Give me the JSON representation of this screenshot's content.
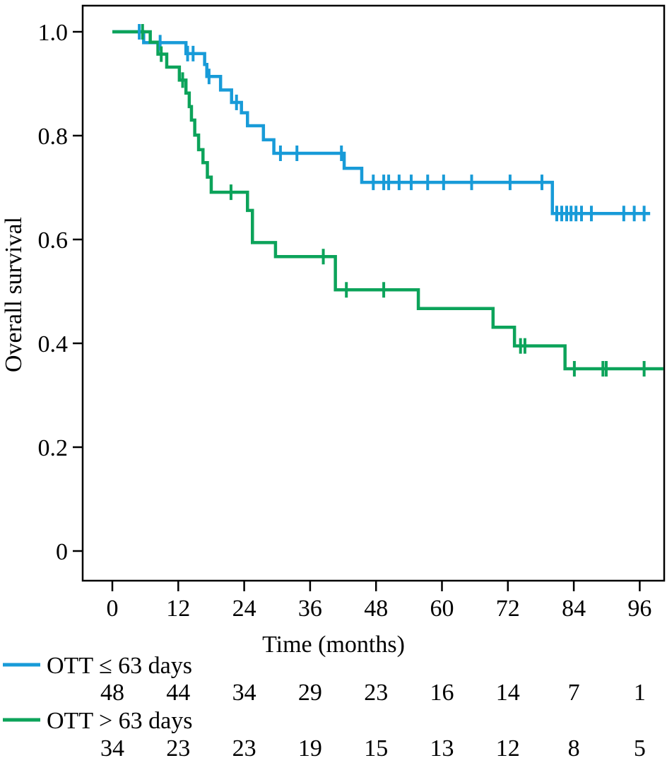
{
  "figure": {
    "background": "#ffffff",
    "axis_color": "#000000",
    "text_color": "#000000"
  },
  "chart_data": {
    "type": "line",
    "subtype": "kaplan_meier_step",
    "title": "",
    "xlabel": "Time (months)",
    "ylabel": "Overall survival",
    "xlim": [
      0,
      100.5
    ],
    "ylim": [
      0,
      1.0
    ],
    "grid": false,
    "legend_position": "bottom-left",
    "xticks": [
      0,
      12,
      24,
      36,
      48,
      60,
      72,
      84,
      96
    ],
    "yticks": [
      {
        "v": 0.0,
        "label": "0"
      },
      {
        "v": 0.2,
        "label": "0.2"
      },
      {
        "v": 0.4,
        "label": "0.4"
      },
      {
        "v": 0.6,
        "label": "0.6"
      },
      {
        "v": 0.8,
        "label": "0.8"
      },
      {
        "v": 1.0,
        "label": "1.0"
      }
    ],
    "series": [
      {
        "name": "OTT ≤ 63 days",
        "color": "#189bd8",
        "n_start": 48,
        "end_time": 97.9,
        "steps": [
          [
            0,
            1.0
          ],
          [
            5.7,
            0.979
          ],
          [
            13.4,
            0.958
          ],
          [
            16.8,
            0.937
          ],
          [
            17.2,
            0.914
          ],
          [
            19.7,
            0.888
          ],
          [
            21.7,
            0.864
          ],
          [
            23.5,
            0.844
          ],
          [
            24.6,
            0.819
          ],
          [
            27.5,
            0.792
          ],
          [
            29.4,
            0.766
          ],
          [
            42.2,
            0.737
          ],
          [
            45.4,
            0.71
          ],
          [
            80.1,
            0.65
          ]
        ],
        "censor_marks": [
          [
            4.9,
            1.0
          ],
          [
            8.7,
            0.979
          ],
          [
            13.7,
            0.958
          ],
          [
            14.7,
            0.958
          ],
          [
            17.6,
            0.914
          ],
          [
            22.6,
            0.864
          ],
          [
            30.6,
            0.766
          ],
          [
            33.6,
            0.766
          ],
          [
            41.7,
            0.766
          ],
          [
            47.5,
            0.71
          ],
          [
            49.4,
            0.71
          ],
          [
            50.3,
            0.71
          ],
          [
            52.2,
            0.71
          ],
          [
            54.4,
            0.71
          ],
          [
            57.4,
            0.71
          ],
          [
            60.3,
            0.71
          ],
          [
            65.4,
            0.71
          ],
          [
            72.4,
            0.71
          ],
          [
            78.2,
            0.71
          ],
          [
            80.9,
            0.65
          ],
          [
            81.8,
            0.65
          ],
          [
            82.7,
            0.65
          ],
          [
            83.5,
            0.65
          ],
          [
            84.4,
            0.65
          ],
          [
            85.4,
            0.65
          ],
          [
            87.2,
            0.65
          ],
          [
            93.1,
            0.65
          ],
          [
            95.0,
            0.65
          ],
          [
            96.8,
            0.65
          ]
        ]
      },
      {
        "name": "OTT > 63 days",
        "color": "#0ca35a",
        "n_start": 34,
        "end_time": 100.3,
        "steps": [
          [
            0,
            1.0
          ],
          [
            6.9,
            0.98
          ],
          [
            8.3,
            0.957
          ],
          [
            9.9,
            0.932
          ],
          [
            12.2,
            0.907
          ],
          [
            13.4,
            0.882
          ],
          [
            14.0,
            0.856
          ],
          [
            14.4,
            0.83
          ],
          [
            15.0,
            0.801
          ],
          [
            15.7,
            0.773
          ],
          [
            16.5,
            0.748
          ],
          [
            17.3,
            0.72
          ],
          [
            18.0,
            0.691
          ],
          [
            24.6,
            0.656
          ],
          [
            25.5,
            0.594
          ],
          [
            29.7,
            0.567
          ],
          [
            40.6,
            0.503
          ],
          [
            55.7,
            0.467
          ],
          [
            69.3,
            0.431
          ],
          [
            73.2,
            0.395
          ],
          [
            82.4,
            0.351
          ]
        ],
        "censor_marks": [
          [
            5.5,
            1.0
          ],
          [
            8.9,
            0.957
          ],
          [
            12.8,
            0.907
          ],
          [
            21.6,
            0.691
          ],
          [
            38.4,
            0.567
          ],
          [
            42.6,
            0.503
          ],
          [
            49.4,
            0.503
          ],
          [
            74.3,
            0.395
          ],
          [
            75.1,
            0.395
          ],
          [
            84.1,
            0.351
          ],
          [
            89.3,
            0.351
          ],
          [
            89.9,
            0.351
          ],
          [
            96.8,
            0.351
          ]
        ]
      }
    ],
    "at_risk_table": {
      "times": [
        0,
        12,
        24,
        36,
        48,
        60,
        72,
        84,
        96
      ],
      "rows": [
        {
          "name": "OTT ≤ 63 days",
          "counts": [
            48,
            44,
            34,
            29,
            23,
            16,
            14,
            7,
            1
          ]
        },
        {
          "name": "OTT > 63 days",
          "counts": [
            34,
            23,
            23,
            19,
            15,
            13,
            12,
            8,
            5
          ]
        }
      ]
    }
  }
}
